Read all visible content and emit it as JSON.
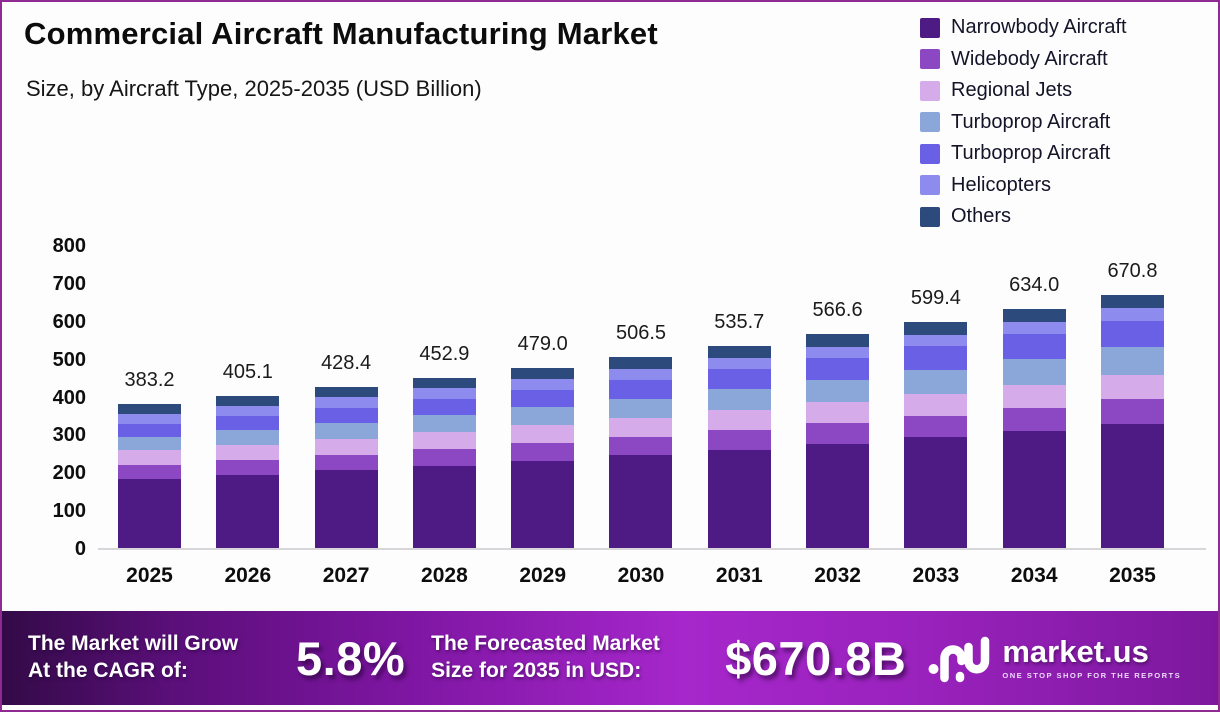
{
  "header": {
    "title": "Commercial Aircraft Manufacturing Market",
    "subtitle": "Size, by Aircraft Type, 2025-2035 (USD Billion)"
  },
  "chart_data": {
    "type": "bar",
    "stacked": true,
    "title": "Commercial Aircraft Manufacturing Market",
    "subtitle": "Size, by Aircraft Type, 2025-2035 (USD Billion)",
    "xlabel": "",
    "ylabel": "USD Billion",
    "ylim": [
      0,
      800
    ],
    "yticks": [
      0,
      100,
      200,
      300,
      400,
      500,
      600,
      700,
      800
    ],
    "grid": false,
    "legend_position": "top-right",
    "categories": [
      "2025",
      "2026",
      "2027",
      "2028",
      "2029",
      "2030",
      "2031",
      "2032",
      "2033",
      "2034",
      "2035"
    ],
    "totals": [
      "383.2",
      "405.1",
      "428.4",
      "452.9",
      "479.0",
      "506.5",
      "535.7",
      "566.6",
      "599.4",
      "634.0",
      "670.8"
    ],
    "series": [
      {
        "name": "Narrowbody Aircraft",
        "color": "#4e1a83",
        "values": [
          185.4,
          196.4,
          208.1,
          220.5,
          233.6,
          247.4,
          262.2,
          277.8,
          294.5,
          312.0,
          330.7
        ]
      },
      {
        "name": "Widebody Aircraft",
        "color": "#8c48c3",
        "values": [
          36.8,
          38.9,
          41.1,
          43.5,
          46.0,
          48.6,
          51.4,
          54.4,
          57.5,
          60.9,
          64.4
        ]
      },
      {
        "name": "Regional Jets",
        "color": "#d5abe9",
        "values": [
          38.3,
          40.3,
          42.5,
          44.7,
          47.1,
          49.6,
          52.3,
          55.1,
          58.0,
          61.1,
          64.4
        ]
      },
      {
        "name": "Turboprop Aircraft",
        "color": "#8ba7da",
        "values": [
          36.4,
          39.1,
          41.9,
          44.9,
          48.2,
          51.7,
          55.4,
          59.4,
          63.7,
          68.2,
          73.1
        ]
      },
      {
        "name": "Turboprop Aircraft",
        "color": "#6a60e6",
        "values": [
          34.5,
          37.1,
          39.8,
          42.8,
          46.0,
          49.4,
          53.0,
          56.9,
          61.1,
          65.6,
          70.4
        ]
      },
      {
        "name": "Helicopters",
        "color": "#8e8bee",
        "values": [
          25.7,
          26.4,
          27.2,
          27.9,
          28.6,
          29.4,
          30.1,
          30.8,
          31.5,
          32.2,
          32.9
        ]
      },
      {
        "name": "Others",
        "color": "#2c4a7c",
        "values": [
          26.1,
          26.9,
          27.8,
          28.6,
          29.5,
          30.4,
          31.3,
          32.2,
          33.1,
          34.0,
          34.9
        ]
      }
    ]
  },
  "banner": {
    "cagr_label_line1": "The Market will Grow",
    "cagr_label_line2": "At the CAGR of:",
    "cagr_value": "5.8%",
    "forecast_label_line1": "The Forecasted Market",
    "forecast_label_line2": "Size for 2035 in USD:",
    "forecast_value": "$670.8B",
    "logo_text": "market.us",
    "logo_tagline": "ONE STOP SHOP FOR THE REPORTS"
  }
}
